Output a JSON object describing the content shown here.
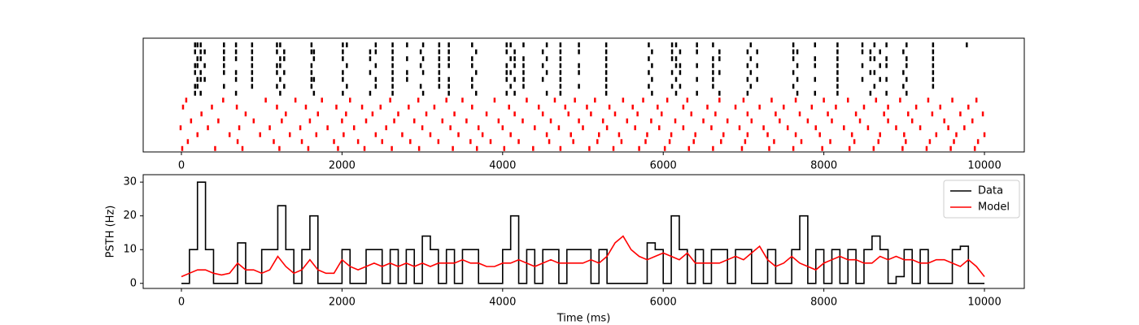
{
  "chart_data": [
    {
      "type": "raster",
      "xlim": [
        -476,
        10496
      ],
      "xticks": [
        0,
        2000,
        4000,
        6000,
        8000,
        10000
      ],
      "series": [
        {
          "color": "#000000",
          "trials": [
            [
              170,
              200,
              240,
              530,
              680,
              880,
              1190,
              1230,
              1620,
              2010,
              2060,
              2420,
              2630,
              2810,
              3010,
              3210,
              3330,
              3620,
              4050,
              4100,
              4260,
              4550,
              4720,
              4950,
              5290,
              5820,
              6110,
              6160,
              6420,
              6620,
              7090,
              7620,
              7890,
              8170,
              8480,
              8630,
              8780,
              9030,
              9360,
              9780
            ],
            [
              170,
              240,
              290,
              530,
              680,
              880,
              1190,
              1280,
              1620,
              1650,
              2010,
              2350,
              2420,
              2630,
              2980,
              3210,
              3330,
              3670,
              4050,
              4150,
              4500,
              4720,
              4950,
              5290,
              5860,
              6110,
              6210,
              6420,
              6700,
              7050,
              7170,
              7620,
              7670,
              8170,
              8480,
              8580,
              8700,
              8990,
              9360
            ],
            [
              200,
              240,
              530,
              680,
              880,
              1230,
              1280,
              1650,
              2010,
              2350,
              2630,
              2810,
              3010,
              3210,
              3330,
              3620,
              4100,
              4150,
              4260,
              4550,
              4720,
              5290,
              5820,
              6110,
              6160,
              6620,
              6700,
              7090,
              7620,
              7890,
              8170,
              8580,
              8630,
              8780,
              9030,
              9360
            ],
            [
              170,
              200,
              290,
              530,
              880,
              1190,
              1230,
              1620,
              2060,
              2420,
              2630,
              2980,
              3210,
              3330,
              3620,
              4050,
              4150,
              4260,
              4500,
              4720,
              4950,
              5290,
              5860,
              6160,
              6210,
              6420,
              6620,
              7050,
              7170,
              7670,
              7890,
              8170,
              8480,
              8700,
              8780,
              9030,
              9360
            ],
            [
              170,
              240,
              530,
              680,
              880,
              1190,
              1280,
              1620,
              2010,
              2350,
              2630,
              2810,
              3010,
              3210,
              3670,
              4050,
              4100,
              4260,
              4550,
              4720,
              4950,
              5290,
              5820,
              6110,
              6210,
              6620,
              6700,
              7090,
              7620,
              8170,
              8580,
              8630,
              8990,
              9360
            ],
            [
              200,
              240,
              290,
              680,
              880,
              1230,
              1620,
              1650,
              2010,
              2420,
              2630,
              2810,
              3210,
              3330,
              3620,
              4050,
              4150,
              4260,
              4500,
              4720,
              5290,
              5860,
              6160,
              6420,
              6620,
              7050,
              7170,
              7670,
              7890,
              8170,
              8480,
              8700,
              8780,
              9030,
              9360
            ],
            [
              170,
              200,
              530,
              880,
              1190,
              1280,
              1620,
              2060,
              2420,
              2630,
              2980,
              3210,
              3330,
              3620,
              4100,
              4260,
              4720,
              4950,
              5290,
              5820,
              6110,
              6210,
              6620,
              7090,
              7620,
              8170,
              8630,
              8990,
              9360
            ],
            [
              170,
              240,
              680,
              1230,
              1650,
              2010,
              2350,
              2630,
              3010,
              3330,
              3670,
              4050,
              4150,
              4550,
              4720,
              5290,
              5860,
              6160,
              6420,
              6700,
              7050,
              7670,
              7890,
              8170,
              8580,
              8780,
              9030
            ]
          ]
        },
        {
          "color": "#ff0000",
          "trials": [
            [
              60,
              520,
              1050,
              1420,
              1750,
              2100,
              2600,
              2950,
              3300,
              3500,
              3900,
              4300,
              4650,
              4900,
              5150,
              5500,
              5750,
              6050,
              6300,
              6700,
              7000,
              7350,
              7650,
              8000,
              8300,
              8650,
              8950,
              9300,
              9600,
              9900
            ],
            [
              20,
              380,
              690,
              1190,
              1550,
              1930,
              2250,
              2480,
              2830,
              3150,
              3620,
              4080,
              4450,
              4780,
              5050,
              5330,
              5620,
              5930,
              6250,
              6550,
              6900,
              7200,
              7500,
              7850,
              8150,
              8500,
              8800,
              9150,
              9450,
              9800
            ],
            [
              250,
              800,
              1300,
              1700,
              2050,
              2380,
              2700,
              3050,
              3400,
              3800,
              4150,
              4500,
              4820,
              5100,
              5400,
              5680,
              5980,
              6350,
              6650,
              7050,
              7400,
              7700,
              8050,
              8400,
              8750,
              9050,
              9350,
              9700,
              9980
            ],
            [
              120,
              460,
              900,
              1250,
              1600,
              2000,
              2300,
              2650,
              2900,
              3250,
              3550,
              3950,
              4250,
              4600,
              4950,
              5250,
              5550,
              5850,
              6150,
              6500,
              6800,
              7100,
              7450,
              7800,
              8100,
              8450,
              8800,
              9100,
              9500,
              9850
            ],
            [
              -10,
              330,
              720,
              1100,
              1480,
              1820,
              2150,
              2550,
              3000,
              3350,
              3700,
              4000,
              4400,
              4700,
              5000,
              5300,
              5650,
              5950,
              6250,
              6600,
              6950,
              7250,
              7550,
              7900,
              8250,
              8550,
              8900,
              9200,
              9550,
              9750
            ],
            [
              200,
              600,
              980,
              1350,
              1680,
              2020,
              2420,
              2750,
              3100,
              3450,
              3750,
              4100,
              4550,
              4850,
              5200,
              5450,
              5800,
              6100,
              6400,
              6750,
              7050,
              7300,
              7650,
              7950,
              8350,
              8700,
              9000,
              9400,
              9650,
              10000
            ],
            [
              80,
              700,
              1150,
              1500,
              1900,
              2200,
              2500,
              2850,
              3200,
              3600,
              3850,
              4200,
              4580,
              4880,
              5180,
              5480,
              5780,
              6080,
              6380,
              6720,
              7020,
              7380,
              7720,
              8080,
              8380,
              8680,
              9020,
              9320,
              9620,
              9920
            ],
            [
              10,
              420,
              760,
              1220,
              1580,
              1950,
              2280,
              2620,
              2960,
              3380,
              3680,
              4020,
              4380,
              4720,
              5080,
              5380,
              5700,
              6020,
              6320,
              6620,
              6980,
              7320,
              7620,
              7980,
              8320,
              8620,
              8980,
              9280,
              9580,
              9880
            ]
          ]
        }
      ]
    },
    {
      "type": "line",
      "xlabel": "Time (ms)",
      "ylabel": "PSTH (Hz)",
      "xlim": [
        -476,
        10496
      ],
      "xticks": [
        0,
        2000,
        4000,
        6000,
        8000,
        10000
      ],
      "ylim": [
        -1.5,
        32.2
      ],
      "yticks": [
        0,
        10,
        20,
        30
      ],
      "legend": "upper right",
      "x": [
        0,
        100,
        200,
        300,
        400,
        500,
        600,
        700,
        800,
        900,
        1000,
        1100,
        1200,
        1300,
        1400,
        1500,
        1600,
        1700,
        1800,
        1900,
        2000,
        2100,
        2200,
        2300,
        2400,
        2500,
        2600,
        2700,
        2800,
        2900,
        3000,
        3100,
        3200,
        3300,
        3400,
        3500,
        3600,
        3700,
        3800,
        3900,
        4000,
        4100,
        4200,
        4300,
        4400,
        4500,
        4600,
        4700,
        4800,
        4900,
        5000,
        5100,
        5200,
        5300,
        5400,
        5500,
        5600,
        5700,
        5800,
        5900,
        6000,
        6100,
        6200,
        6300,
        6400,
        6500,
        6600,
        6700,
        6800,
        6900,
        7000,
        7100,
        7200,
        7300,
        7400,
        7500,
        7600,
        7700,
        7800,
        7900,
        8000,
        8100,
        8200,
        8300,
        8400,
        8500,
        8600,
        8700,
        8800,
        8900,
        9000,
        9100,
        9200,
        9300,
        9400,
        9500,
        9600,
        9700,
        9800,
        9900,
        10000
      ],
      "series": [
        {
          "name": "Data",
          "color": "#000000",
          "steps": true,
          "values": [
            0,
            10,
            30,
            10,
            0,
            0,
            0,
            12,
            0,
            0,
            10,
            10,
            23,
            10,
            0,
            10,
            20,
            0,
            0,
            0,
            10,
            0,
            0,
            10,
            10,
            0,
            10,
            0,
            10,
            0,
            14,
            10,
            0,
            10,
            0,
            10,
            10,
            0,
            0,
            0,
            10,
            20,
            0,
            10,
            0,
            10,
            10,
            0,
            10,
            10,
            10,
            0,
            10,
            0,
            0,
            0,
            0,
            0,
            12,
            10,
            0,
            20,
            10,
            0,
            10,
            0,
            10,
            10,
            0,
            10,
            10,
            0,
            0,
            10,
            0,
            0,
            10,
            20,
            0,
            10,
            0,
            10,
            0,
            10,
            0,
            10,
            14,
            10,
            0,
            2,
            10,
            0,
            10,
            0,
            0,
            0,
            10,
            11,
            0,
            0,
            0
          ]
        },
        {
          "name": "Model",
          "color": "#ff0000",
          "steps": false,
          "values": [
            2,
            3,
            4,
            4,
            3,
            2.5,
            3,
            6,
            4,
            4,
            3,
            4,
            8,
            5,
            3,
            4,
            7,
            4,
            3,
            3,
            7,
            5,
            4,
            5,
            6,
            5,
            6,
            5,
            6,
            5,
            6,
            5,
            6,
            6,
            6,
            7,
            6,
            6,
            5,
            5,
            6,
            6,
            7,
            6,
            5,
            6,
            7,
            6,
            6,
            6,
            6,
            7,
            6,
            8,
            12,
            14,
            10,
            8,
            7,
            8,
            9,
            8,
            7,
            9,
            6,
            6,
            6,
            6,
            7,
            8,
            7,
            9,
            11,
            7,
            5,
            6,
            8,
            6,
            5,
            4,
            6,
            7,
            8,
            7,
            7,
            6,
            6,
            8,
            7,
            8,
            7,
            7,
            6,
            6,
            7,
            7,
            6,
            5,
            7,
            5,
            2
          ]
        }
      ]
    }
  ]
}
